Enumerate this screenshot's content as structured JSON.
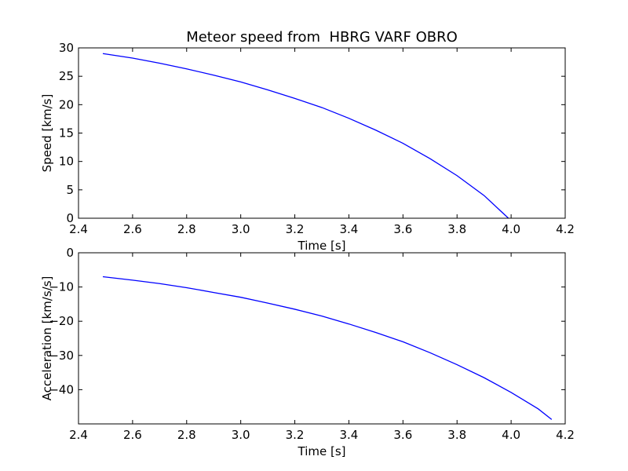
{
  "chart_data": [
    {
      "type": "line",
      "title": "Meteor speed from  HBRG VARF OBRO",
      "xlabel": "Time [s]",
      "ylabel": "Speed [km/s]",
      "xlim": [
        2.4,
        4.2
      ],
      "ylim": [
        0,
        30
      ],
      "xticks": [
        2.4,
        2.6,
        2.8,
        3.0,
        3.2,
        3.4,
        3.6,
        3.8,
        4.0,
        4.2
      ],
      "xtick_labels": [
        "2.4",
        "2.6",
        "2.8",
        "3.0",
        "3.2",
        "3.4",
        "3.6",
        "3.8",
        "4.0",
        "4.2"
      ],
      "yticks": [
        0,
        5,
        10,
        15,
        20,
        25,
        30
      ],
      "ytick_labels": [
        "0",
        "5",
        "10",
        "15",
        "20",
        "25",
        "30"
      ],
      "grid": false,
      "series": [
        {
          "color": "#0000ff",
          "x": [
            2.49,
            2.6,
            2.7,
            2.8,
            2.9,
            3.0,
            3.1,
            3.2,
            3.3,
            3.4,
            3.5,
            3.6,
            3.7,
            3.8,
            3.9,
            3.99
          ],
          "y": [
            29.0,
            28.2,
            27.3,
            26.3,
            25.2,
            24.0,
            22.6,
            21.1,
            19.5,
            17.6,
            15.5,
            13.2,
            10.5,
            7.5,
            4.0,
            0.0
          ]
        }
      ]
    },
    {
      "type": "line",
      "xlabel": "Time [s]",
      "ylabel": "Acceleration [km/s/s]",
      "xlim": [
        2.4,
        4.2
      ],
      "ylim": [
        -50,
        0
      ],
      "xticks": [
        2.4,
        2.6,
        2.8,
        3.0,
        3.2,
        3.4,
        3.6,
        3.8,
        4.0,
        4.2
      ],
      "xtick_labels": [
        "2.4",
        "2.6",
        "2.8",
        "3.0",
        "3.2",
        "3.4",
        "3.6",
        "3.8",
        "4.0",
        "4.2"
      ],
      "yticks": [
        0,
        -10,
        -20,
        -30,
        -40
      ],
      "ytick_labels": [
        "0",
        "−10",
        "−20",
        "−30",
        "−40"
      ],
      "grid": false,
      "series": [
        {
          "color": "#0000ff",
          "x": [
            2.49,
            2.6,
            2.7,
            2.8,
            2.9,
            3.0,
            3.1,
            3.2,
            3.3,
            3.4,
            3.5,
            3.6,
            3.7,
            3.8,
            3.9,
            4.0,
            4.1,
            4.15
          ],
          "y": [
            -7.0,
            -8.0,
            -9.0,
            -10.2,
            -11.6,
            -13.0,
            -14.7,
            -16.5,
            -18.5,
            -20.8,
            -23.3,
            -26.0,
            -29.2,
            -32.7,
            -36.5,
            -40.8,
            -45.6,
            -48.7
          ]
        }
      ]
    }
  ]
}
